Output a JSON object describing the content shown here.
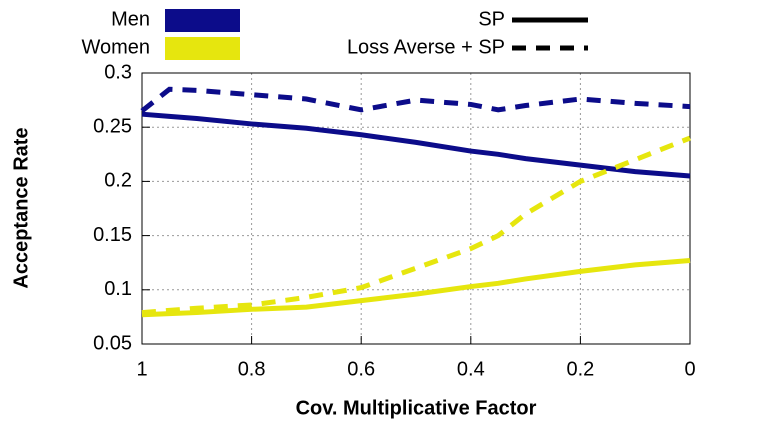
{
  "chart_data": {
    "type": "line",
    "x_label": "Cov. Multiplicative Factor",
    "y_label": "Acceptance Rate",
    "x": [
      1,
      0.95,
      0.9,
      0.8,
      0.7,
      0.6,
      0.5,
      0.4,
      0.35,
      0.3,
      0.2,
      0.1,
      0
    ],
    "xlim": [
      1,
      0
    ],
    "xticks": [
      1,
      0.8,
      0.6,
      0.4,
      0.2,
      0
    ],
    "ylim": [
      0.05,
      0.3
    ],
    "yticks": [
      0.05,
      0.1,
      0.15,
      0.2,
      0.25,
      0.3
    ],
    "grid": true,
    "color_legend": [
      {
        "name": "Men",
        "color": "#0c0c8a"
      },
      {
        "name": "Women",
        "color": "#e6e60e"
      }
    ],
    "style_legend": [
      {
        "name": "SP",
        "dashed": false
      },
      {
        "name": "Loss Averse + SP",
        "dashed": true
      }
    ],
    "series": [
      {
        "color": "#0c0c8a",
        "dashed": true,
        "values": [
          0.265,
          0.285,
          0.284,
          0.28,
          0.276,
          0.266,
          0.275,
          0.271,
          0.266,
          0.27,
          0.276,
          0.272,
          0.269
        ]
      },
      {
        "color": "#0c0c8a",
        "dashed": false,
        "values": [
          0.262,
          0.26,
          0.258,
          0.253,
          0.249,
          0.243,
          0.236,
          0.228,
          0.225,
          0.221,
          0.215,
          0.209,
          0.205
        ]
      },
      {
        "color": "#e6e60e",
        "dashed": true,
        "values": [
          0.079,
          0.081,
          0.083,
          0.086,
          0.093,
          0.102,
          0.12,
          0.138,
          0.15,
          0.17,
          0.2,
          0.22,
          0.24
        ]
      },
      {
        "color": "#e6e60e",
        "dashed": false,
        "values": [
          0.077,
          0.078,
          0.079,
          0.082,
          0.084,
          0.09,
          0.096,
          0.103,
          0.106,
          0.11,
          0.117,
          0.123,
          0.127
        ]
      }
    ]
  }
}
